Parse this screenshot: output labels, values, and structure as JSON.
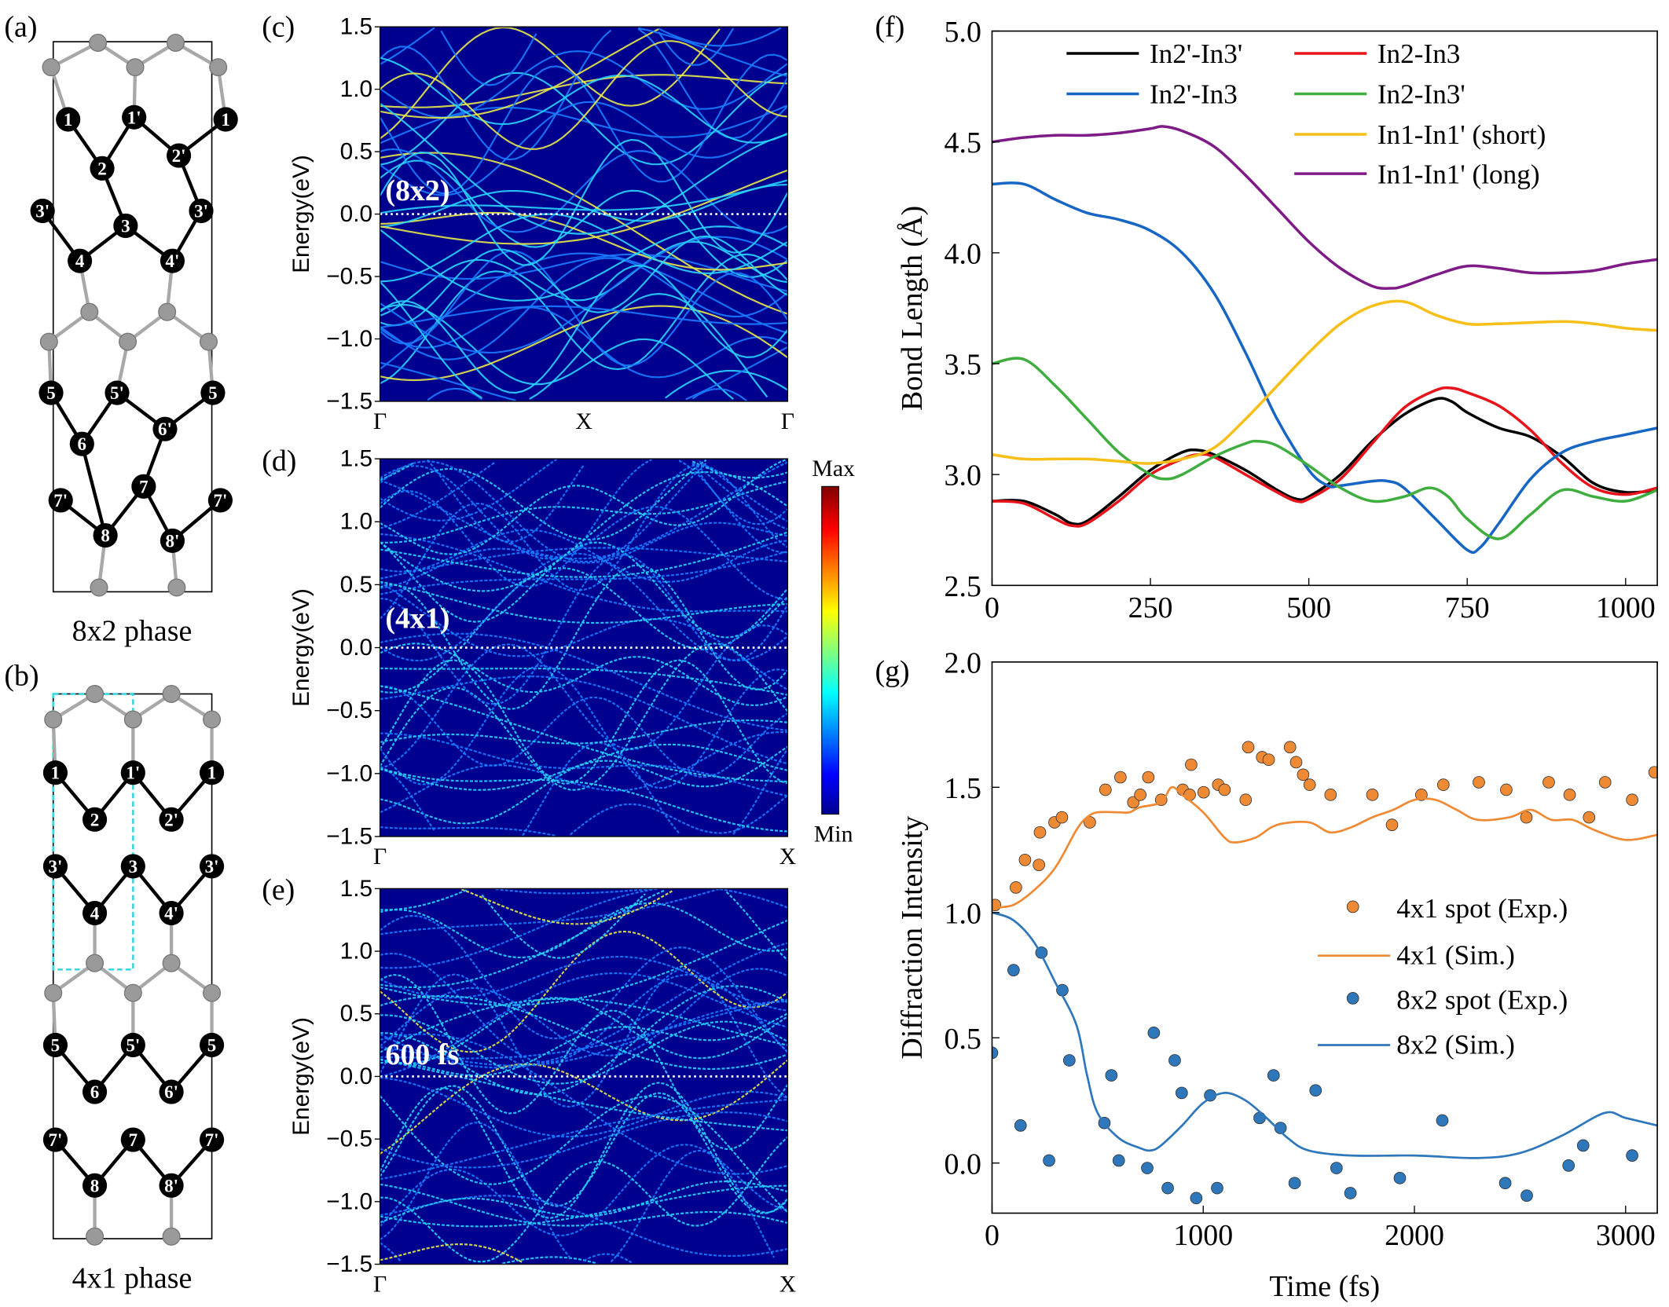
{
  "panels": {
    "a": "(a)",
    "b": "(b)",
    "c": "(c)",
    "d": "(d)",
    "e": "(e)",
    "f": "(f)",
    "g": "(g)"
  },
  "structures": {
    "a_caption": "8x2 phase",
    "b_caption": "4x1 phase",
    "a_atoms": [
      "1",
      "1'",
      "1",
      "2",
      "2'",
      "3'",
      "3",
      "3'",
      "4",
      "4'",
      "5",
      "5'",
      "5",
      "6",
      "6'",
      "7'",
      "7",
      "7'",
      "8",
      "8'"
    ],
    "b_atoms": [
      "1",
      "1'",
      "1",
      "2",
      "2'",
      "3'",
      "3",
      "3'",
      "4",
      "4'",
      "5",
      "5'",
      "5",
      "6",
      "6'",
      "7'",
      "7",
      "7'",
      "8",
      "8'"
    ],
    "atom_color": "#000000",
    "substrate_color": "#a8a8a8",
    "unit_cell_color": "#3fd8e0"
  },
  "bands": {
    "ylabel": "Energy(eV)",
    "yticks": [
      "1.5",
      "1.0",
      "0.5",
      "0.0",
      "−0.5",
      "−1.0",
      "−1.5"
    ],
    "c": {
      "label": "(8x2)",
      "xticks": [
        "Γ",
        "X",
        "Γ"
      ]
    },
    "d": {
      "label": "(4x1)",
      "xticks": [
        "Γ",
        "X"
      ]
    },
    "e": {
      "label": "600 fs",
      "xticks": [
        "Γ",
        "X"
      ]
    },
    "background": "#00008f",
    "colorbar": {
      "max": "Max",
      "min": "Min",
      "colormap": "jet"
    }
  },
  "chart_data": [
    {
      "type": "line",
      "panel": "f",
      "xlabel": "",
      "ylabel": "Bond Length (Å)",
      "xlim": [
        0,
        1050
      ],
      "ylim": [
        2.5,
        5.0
      ],
      "xticks": [
        "0",
        "250",
        "500",
        "750",
        "1000"
      ],
      "yticks": [
        "2.5",
        "3.0",
        "3.5",
        "4.0",
        "4.5",
        "5.0"
      ],
      "legend": "top",
      "series": [
        {
          "name": "In2'-In3'",
          "color": "#000000",
          "x": [
            0,
            50,
            100,
            125,
            150,
            200,
            250,
            300,
            325,
            350,
            400,
            450,
            480,
            500,
            550,
            600,
            650,
            700,
            725,
            750,
            800,
            850,
            900,
            950,
            1000,
            1050
          ],
          "y": [
            2.88,
            2.88,
            2.82,
            2.78,
            2.79,
            2.9,
            3.02,
            3.1,
            3.11,
            3.09,
            3.02,
            2.93,
            2.89,
            2.9,
            3.0,
            3.15,
            3.27,
            3.34,
            3.33,
            3.28,
            3.21,
            3.17,
            3.08,
            2.96,
            2.92,
            2.93
          ]
        },
        {
          "name": "In2-In3",
          "color": "#e8141c",
          "x": [
            0,
            50,
            100,
            125,
            150,
            200,
            250,
            300,
            325,
            350,
            400,
            450,
            480,
            500,
            550,
            600,
            650,
            700,
            725,
            750,
            800,
            850,
            900,
            950,
            1000,
            1050
          ],
          "y": [
            2.88,
            2.87,
            2.8,
            2.77,
            2.78,
            2.88,
            3.0,
            3.07,
            3.09,
            3.08,
            3.0,
            2.92,
            2.88,
            2.89,
            2.98,
            3.14,
            3.3,
            3.38,
            3.39,
            3.37,
            3.31,
            3.2,
            3.05,
            2.94,
            2.91,
            2.94
          ]
        },
        {
          "name": "In2'-In3",
          "color": "#1866c4",
          "x": [
            0,
            50,
            100,
            150,
            200,
            250,
            300,
            350,
            400,
            450,
            500,
            530,
            550,
            600,
            625,
            650,
            700,
            750,
            770,
            800,
            850,
            900,
            950,
            1000,
            1050
          ],
          "y": [
            4.31,
            4.31,
            4.24,
            4.18,
            4.15,
            4.1,
            4.0,
            3.82,
            3.55,
            3.25,
            3.02,
            2.95,
            2.95,
            2.97,
            2.97,
            2.94,
            2.8,
            2.66,
            2.67,
            2.78,
            2.98,
            3.1,
            3.15,
            3.18,
            3.21
          ]
        },
        {
          "name": "In2-In3'",
          "color": "#3fae3f",
          "x": [
            0,
            50,
            100,
            150,
            200,
            250,
            275,
            300,
            350,
            400,
            420,
            450,
            500,
            550,
            600,
            650,
            690,
            720,
            750,
            800,
            850,
            900,
            950,
            1000,
            1050
          ],
          "y": [
            3.5,
            3.52,
            3.4,
            3.25,
            3.1,
            3.0,
            2.98,
            3.0,
            3.08,
            3.14,
            3.15,
            3.13,
            3.04,
            2.94,
            2.88,
            2.9,
            2.94,
            2.9,
            2.8,
            2.71,
            2.82,
            2.93,
            2.9,
            2.88,
            2.93
          ]
        },
        {
          "name": "In1-In1' (short)",
          "color": "#f6bf1a",
          "x": [
            0,
            50,
            100,
            150,
            200,
            250,
            300,
            350,
            400,
            450,
            500,
            550,
            600,
            650,
            700,
            750,
            800,
            900,
            950,
            1000,
            1050
          ],
          "y": [
            3.09,
            3.07,
            3.07,
            3.07,
            3.06,
            3.05,
            3.07,
            3.12,
            3.25,
            3.4,
            3.55,
            3.68,
            3.76,
            3.78,
            3.72,
            3.68,
            3.68,
            3.69,
            3.68,
            3.66,
            3.65
          ]
        },
        {
          "name": "In1-In1' (long)",
          "color": "#7e1b86",
          "x": [
            0,
            50,
            100,
            150,
            200,
            250,
            270,
            300,
            350,
            400,
            450,
            500,
            550,
            600,
            630,
            650,
            700,
            750,
            800,
            850,
            900,
            950,
            1000,
            1050
          ],
          "y": [
            4.5,
            4.52,
            4.53,
            4.53,
            4.54,
            4.56,
            4.57,
            4.55,
            4.48,
            4.35,
            4.2,
            4.05,
            3.93,
            3.85,
            3.84,
            3.85,
            3.9,
            3.94,
            3.93,
            3.91,
            3.91,
            3.92,
            3.95,
            3.97
          ]
        }
      ]
    },
    {
      "type": "scatter",
      "panel": "g",
      "xlabel": "Time (fs)",
      "ylabel": "Diffraction Intensity",
      "xlim": [
        0,
        3150
      ],
      "ylim": [
        -0.2,
        2.0
      ],
      "xticks": [
        "0",
        "1000",
        "2000",
        "3000"
      ],
      "yticks": [
        "0.0",
        "0.5",
        "1.0",
        "1.5",
        "2.0"
      ],
      "legend": "right",
      "series": [
        {
          "name": "4x1 spot (Exp.)",
          "kind": "points",
          "color": "#ee8a34",
          "x": [
            14,
            113,
            156,
            222,
            227,
            296,
            331,
            463,
            537,
            608,
            669,
            702,
            740,
            801,
            903,
            936,
            943,
            1002,
            1071,
            1101,
            1201,
            1213,
            1279,
            1310,
            1411,
            1440,
            1473,
            1504,
            1603,
            1801,
            1894,
            2033,
            2137,
            2305,
            2435,
            2530,
            2636,
            2735,
            2827,
            2903,
            3031,
            3137
          ],
          "y": [
            1.03,
            1.1,
            1.21,
            1.19,
            1.32,
            1.36,
            1.38,
            1.36,
            1.49,
            1.54,
            1.44,
            1.47,
            1.54,
            1.45,
            1.49,
            1.47,
            1.59,
            1.48,
            1.51,
            1.49,
            1.45,
            1.66,
            1.62,
            1.61,
            1.66,
            1.6,
            1.55,
            1.51,
            1.47,
            1.47,
            1.35,
            1.47,
            1.51,
            1.52,
            1.49,
            1.38,
            1.52,
            1.47,
            1.38,
            1.52,
            1.45,
            1.56
          ]
        },
        {
          "name": "4x1 (Sim.)",
          "kind": "line",
          "color": "#ee8a34",
          "x": [
            0,
            100,
            200,
            300,
            400,
            450,
            500,
            600,
            650,
            700,
            800,
            850,
            900,
            1000,
            1100,
            1150,
            1250,
            1350,
            1500,
            1600,
            1700,
            1800,
            1900,
            2000,
            2100,
            2200,
            2300,
            2450,
            2550,
            2650,
            2750,
            2850,
            3000,
            3150
          ],
          "y": [
            1.02,
            1.03,
            1.09,
            1.18,
            1.33,
            1.38,
            1.4,
            1.4,
            1.4,
            1.42,
            1.44,
            1.5,
            1.47,
            1.4,
            1.3,
            1.28,
            1.3,
            1.35,
            1.36,
            1.32,
            1.34,
            1.38,
            1.41,
            1.45,
            1.45,
            1.41,
            1.37,
            1.38,
            1.41,
            1.37,
            1.37,
            1.33,
            1.29,
            1.31
          ]
        },
        {
          "name": "8x2 spot (Exp.)",
          "kind": "points",
          "color": "#2f77bb",
          "x": [
            0,
            102,
            135,
            234,
            270,
            333,
            366,
            532,
            565,
            600,
            735,
            766,
            832,
            865,
            898,
            967,
            1033,
            1066,
            1267,
            1333,
            1366,
            1433,
            1532,
            1631,
            1697,
            1931,
            2132,
            2430,
            2532,
            2730,
            2799,
            3031
          ],
          "y": [
            0.44,
            0.77,
            0.15,
            0.84,
            0.01,
            0.69,
            0.41,
            0.16,
            0.35,
            0.01,
            -0.02,
            0.52,
            -0.1,
            0.41,
            0.28,
            -0.14,
            0.27,
            -0.1,
            0.18,
            0.35,
            0.14,
            -0.08,
            0.29,
            -0.02,
            -0.12,
            -0.06,
            0.17,
            -0.08,
            -0.13,
            -0.01,
            0.07,
            0.03
          ]
        },
        {
          "name": "8x2 (Sim.)",
          "kind": "line",
          "color": "#2f77bb",
          "x": [
            0,
            100,
            200,
            300,
            400,
            450,
            500,
            600,
            700,
            750,
            800,
            900,
            1000,
            1100,
            1200,
            1300,
            1400,
            1500,
            1700,
            2000,
            2300,
            2500,
            2700,
            2900,
            3000,
            3150
          ],
          "y": [
            1.0,
            0.97,
            0.88,
            0.72,
            0.55,
            0.35,
            0.2,
            0.1,
            0.06,
            0.05,
            0.07,
            0.15,
            0.24,
            0.28,
            0.25,
            0.18,
            0.1,
            0.05,
            0.03,
            0.03,
            0.02,
            0.04,
            0.11,
            0.2,
            0.18,
            0.15
          ]
        }
      ]
    }
  ]
}
